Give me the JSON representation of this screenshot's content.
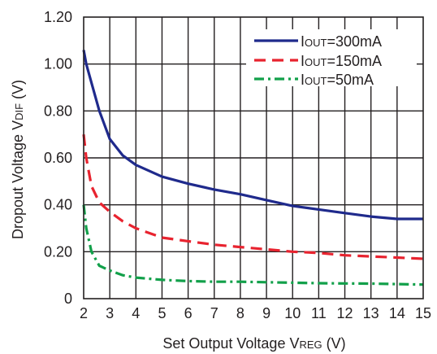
{
  "chart_data": {
    "type": "line",
    "xlabel": "Set Output Voltage V",
    "xlabel_sub": "REG",
    "xlabel_unit": " (V)",
    "ylabel": "Dropout Voltage V",
    "ylabel_sub": "DIF",
    "ylabel_unit": " (V)",
    "xlim": [
      2,
      15
    ],
    "ylim": [
      0,
      1.2
    ],
    "x_ticks": [
      "2",
      "3",
      "4",
      "5",
      "6",
      "7",
      "8",
      "9",
      "10",
      "11",
      "12",
      "13",
      "14",
      "15"
    ],
    "y_ticks": [
      "0",
      "0.20",
      "0.40",
      "0.60",
      "0.80",
      "1.00",
      "1.20"
    ],
    "grid": true,
    "legend_position": "top-right",
    "series": [
      {
        "name_main": "I",
        "name_sub": "OUT",
        "name_rest": "=300mA",
        "color": "#1f2a8c",
        "dash": "solid",
        "x": [
          2.0,
          2.1,
          2.3,
          2.6,
          3.0,
          3.5,
          4.0,
          5.0,
          6.0,
          7.0,
          8.0,
          9.0,
          10.0,
          11.0,
          12.0,
          13.0,
          14.0,
          15.0
        ],
        "y": [
          1.06,
          1.0,
          0.92,
          0.8,
          0.68,
          0.61,
          0.57,
          0.52,
          0.49,
          0.465,
          0.445,
          0.42,
          0.395,
          0.38,
          0.365,
          0.35,
          0.34,
          0.34
        ]
      },
      {
        "name_main": "I",
        "name_sub": "OUT",
        "name_rest": "=150mA",
        "color": "#e8232f",
        "dash": "dashed",
        "x": [
          2.0,
          2.1,
          2.3,
          2.6,
          3.0,
          3.5,
          4.0,
          5.0,
          6.0,
          7.0,
          8.0,
          9.0,
          10.0,
          11.0,
          12.0,
          13.0,
          14.0,
          15.0
        ],
        "y": [
          0.7,
          0.6,
          0.48,
          0.41,
          0.37,
          0.33,
          0.3,
          0.26,
          0.245,
          0.23,
          0.22,
          0.21,
          0.2,
          0.195,
          0.185,
          0.18,
          0.175,
          0.17
        ]
      },
      {
        "name_main": "I",
        "name_sub": "OUT",
        "name_rest": "=50mA",
        "color": "#12a04a",
        "dash": "dashdot",
        "x": [
          2.0,
          2.1,
          2.3,
          2.6,
          3.0,
          3.5,
          4.0,
          5.0,
          6.0,
          7.0,
          8.0,
          9.0,
          10.0,
          11.0,
          12.0,
          13.0,
          14.0,
          15.0
        ],
        "y": [
          0.4,
          0.3,
          0.2,
          0.14,
          0.12,
          0.1,
          0.09,
          0.08,
          0.075,
          0.072,
          0.072,
          0.07,
          0.068,
          0.066,
          0.065,
          0.064,
          0.062,
          0.06
        ]
      }
    ]
  }
}
